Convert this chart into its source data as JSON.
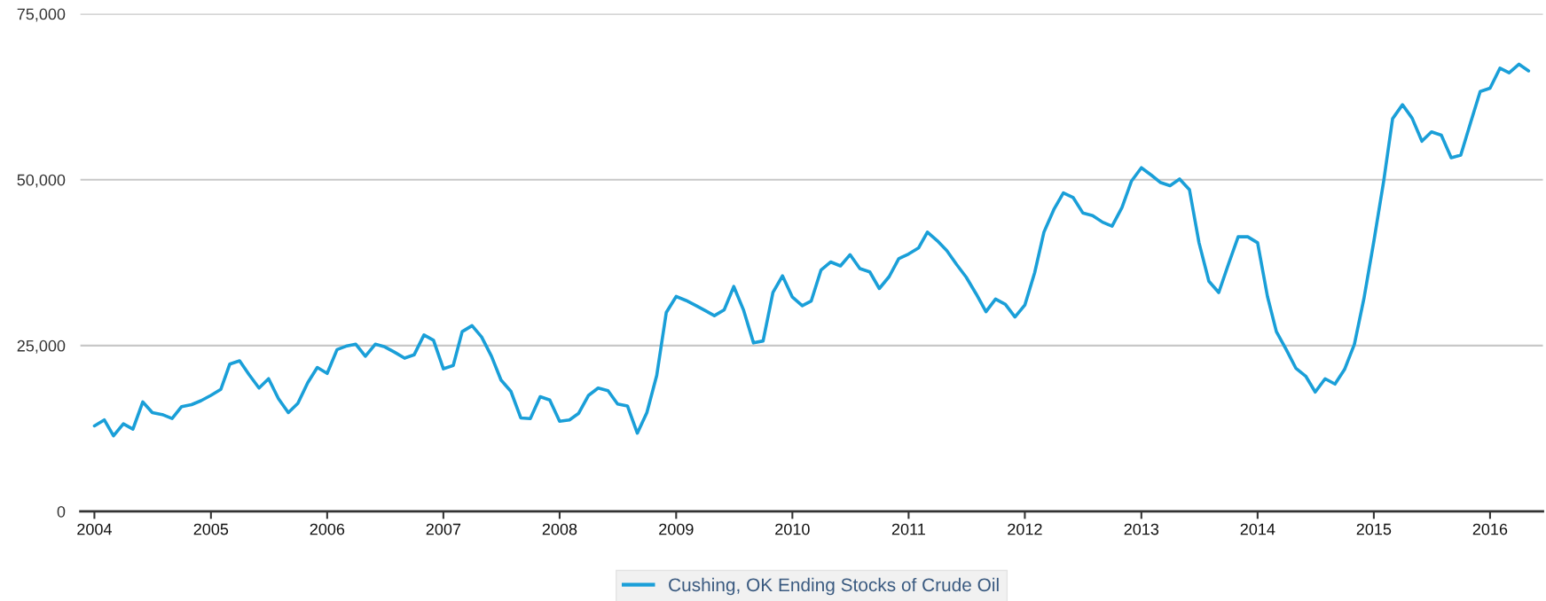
{
  "chart_data": {
    "type": "line",
    "x": [
      "2004-01",
      "2004-02",
      "2004-03",
      "2004-04",
      "2004-05",
      "2004-06",
      "2004-07",
      "2004-08",
      "2004-09",
      "2004-10",
      "2004-11",
      "2004-12",
      "2005-01",
      "2005-02",
      "2005-03",
      "2005-04",
      "2005-05",
      "2005-06",
      "2005-07",
      "2005-08",
      "2005-09",
      "2005-10",
      "2005-11",
      "2005-12",
      "2006-01",
      "2006-02",
      "2006-03",
      "2006-04",
      "2006-05",
      "2006-06",
      "2006-07",
      "2006-08",
      "2006-09",
      "2006-10",
      "2006-11",
      "2006-12",
      "2007-01",
      "2007-02",
      "2007-03",
      "2007-04",
      "2007-05",
      "2007-06",
      "2007-07",
      "2007-08",
      "2007-09",
      "2007-10",
      "2007-11",
      "2007-12",
      "2008-01",
      "2008-02",
      "2008-03",
      "2008-04",
      "2008-05",
      "2008-06",
      "2008-07",
      "2008-08",
      "2008-09",
      "2008-10",
      "2008-11",
      "2008-12",
      "2009-01",
      "2009-02",
      "2009-03",
      "2009-04",
      "2009-05",
      "2009-06",
      "2009-07",
      "2009-08",
      "2009-09",
      "2009-10",
      "2009-11",
      "2009-12",
      "2010-01",
      "2010-02",
      "2010-03",
      "2010-04",
      "2010-05",
      "2010-06",
      "2010-07",
      "2010-08",
      "2010-09",
      "2010-10",
      "2010-11",
      "2010-12",
      "2011-01",
      "2011-02",
      "2011-03",
      "2011-04",
      "2011-05",
      "2011-06",
      "2011-07",
      "2011-08",
      "2011-09",
      "2011-10",
      "2011-11",
      "2011-12",
      "2012-01",
      "2012-02",
      "2012-03",
      "2012-04",
      "2012-05",
      "2012-06",
      "2012-07",
      "2012-08",
      "2012-09",
      "2012-10",
      "2012-11",
      "2012-12",
      "2013-01",
      "2013-02",
      "2013-03",
      "2013-04",
      "2013-05",
      "2013-06",
      "2013-07",
      "2013-08",
      "2013-09",
      "2013-10",
      "2013-11",
      "2013-12",
      "2014-01",
      "2014-02",
      "2014-03",
      "2014-04",
      "2014-05",
      "2014-06",
      "2014-07",
      "2014-08",
      "2014-09",
      "2014-10",
      "2014-11",
      "2014-12",
      "2015-01",
      "2015-02",
      "2015-03",
      "2015-04",
      "2015-05",
      "2015-06",
      "2015-07",
      "2015-08",
      "2015-09",
      "2015-10",
      "2015-11",
      "2015-12",
      "2016-01",
      "2016-02",
      "2016-03",
      "2016-04",
      "2016-05"
    ],
    "series": [
      {
        "name": "Cushing, OK Ending Stocks of Crude Oil",
        "color": "#1a9fd8",
        "values": [
          12900,
          13800,
          11400,
          13200,
          12400,
          16500,
          14900,
          14600,
          14000,
          15800,
          16100,
          16700,
          17500,
          18400,
          22200,
          22700,
          20600,
          18600,
          20000,
          17000,
          14900,
          16300,
          19400,
          21700,
          20800,
          24400,
          24900,
          25200,
          23400,
          25200,
          24800,
          24000,
          23100,
          23600,
          26600,
          25800,
          21500,
          22000,
          27100,
          28000,
          26300,
          23400,
          19800,
          18100,
          14100,
          14000,
          17300,
          16800,
          13600,
          13800,
          14800,
          17500,
          18600,
          18200,
          16200,
          15900,
          11800,
          14900,
          20500,
          30000,
          32400,
          31800,
          31100,
          30300,
          29500,
          30400,
          33900,
          30300,
          25400,
          25700,
          33000,
          35500,
          32300,
          31000,
          31700,
          36400,
          37600,
          37000,
          38700,
          36600,
          36100,
          33600,
          35400,
          38100,
          38800,
          39700,
          42100,
          40800,
          39300,
          37200,
          35300,
          32800,
          30100,
          32000,
          31200,
          29300,
          31100,
          36000,
          42100,
          45500,
          48000,
          47300,
          45000,
          44600,
          43600,
          43000,
          45800,
          49800,
          51800,
          50700,
          49600,
          49100,
          50100,
          48500,
          40500,
          34700,
          33000,
          37200,
          41400,
          41400,
          40500,
          32400,
          27100,
          24400,
          21600,
          20400,
          18000,
          20000,
          19200,
          21400,
          25200,
          32100,
          40700,
          49800,
          59200,
          61300,
          59300,
          55800,
          57200,
          56700,
          53300,
          53700,
          58600,
          63300,
          63800,
          66800,
          66100,
          67400,
          66400
        ]
      }
    ],
    "xlim": [
      "2003-11-18",
      "2016-06-15"
    ],
    "xticks": [
      "2004",
      "2005",
      "2006",
      "2007",
      "2008",
      "2009",
      "2010",
      "2011",
      "2012",
      "2013",
      "2014",
      "2015",
      "2016"
    ],
    "ylim": [
      0,
      75000
    ],
    "yticks": [
      0,
      {
        "value": 25000,
        "label": "25,000"
      },
      {
        "value": 50000,
        "label": "50,000"
      },
      {
        "value": 75000,
        "label": "75,000"
      }
    ],
    "grid": "y",
    "legend": "bottom"
  }
}
